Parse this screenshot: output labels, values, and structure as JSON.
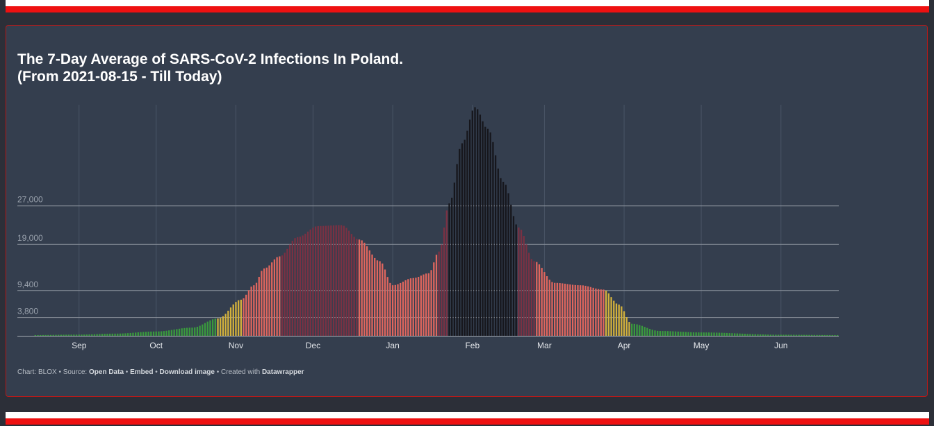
{
  "title": {
    "line1": "The 7-Day Average of SARS-CoV-2 Infections In Poland.",
    "line2": "(From 2021-08-15 - Till Today)"
  },
  "colors": {
    "background": "#2c2f38",
    "card": "#343e4e",
    "flag_white": "#ffffff",
    "flag_red": "#ee1111",
    "green": "#3a9a3e",
    "yellow": "#d4b23c",
    "salmon": "#e0665e",
    "maroon": "#7a3143",
    "black": "#16161c"
  },
  "footer": {
    "prefix": "Chart: BLOX • Source:",
    "open_data": "Open Data",
    "sep1": "•",
    "embed": "Embed",
    "sep2": "•",
    "download": "Download image",
    "sep3": "• Created with",
    "datawrapper": "Datawrapper"
  },
  "chart_data": {
    "type": "bar",
    "title": "The 7-Day Average of SARS-CoV-2 Infections In Poland. (From 2021-08-15 - Till Today)",
    "xlabel": "",
    "ylabel": "",
    "x_start": "2021-08-15",
    "x_end": "2022-06-23",
    "x_ticks": [
      {
        "label": "Sep",
        "date": "2021-09-01"
      },
      {
        "label": "Oct",
        "date": "2021-10-01"
      },
      {
        "label": "Nov",
        "date": "2021-11-01"
      },
      {
        "label": "Dec",
        "date": "2021-12-01"
      },
      {
        "label": "Jan",
        "date": "2022-01-01"
      },
      {
        "label": "Feb",
        "date": "2022-02-01"
      },
      {
        "label": "Mar",
        "date": "2022-03-01"
      },
      {
        "label": "Apr",
        "date": "2022-04-01"
      },
      {
        "label": "May",
        "date": "2022-05-01"
      },
      {
        "label": "Jun",
        "date": "2022-06-01"
      }
    ],
    "y_ticks": [
      {
        "label": "3,800",
        "value": 3800
      },
      {
        "label": "9,400",
        "value": 9400
      },
      {
        "label": "19,000",
        "value": 19000
      },
      {
        "label": "27,000",
        "value": 27000
      }
    ],
    "ylim": [
      0,
      48000
    ],
    "grid": true,
    "color_bands": [
      {
        "from": "2021-08-15",
        "to": "2021-10-24",
        "color": "green"
      },
      {
        "from": "2021-10-25",
        "to": "2021-11-03",
        "color": "yellow"
      },
      {
        "from": "2021-11-04",
        "to": "2021-11-18",
        "color": "salmon"
      },
      {
        "from": "2021-11-19",
        "to": "2021-12-18",
        "color": "maroon"
      },
      {
        "from": "2021-12-19",
        "to": "2022-01-18",
        "color": "salmon"
      },
      {
        "from": "2022-01-19",
        "to": "2022-01-22",
        "color": "maroon"
      },
      {
        "from": "2022-01-23",
        "to": "2022-02-18",
        "color": "black"
      },
      {
        "from": "2022-02-19",
        "to": "2022-02-25",
        "color": "maroon"
      },
      {
        "from": "2022-02-26",
        "to": "2022-03-24",
        "color": "salmon"
      },
      {
        "from": "2022-03-25",
        "to": "2022-04-03",
        "color": "yellow"
      },
      {
        "from": "2022-04-04",
        "to": "2022-06-23",
        "color": "green"
      }
    ],
    "keypoints": [
      {
        "date": "2021-08-15",
        "value": 150
      },
      {
        "date": "2021-09-01",
        "value": 250
      },
      {
        "date": "2021-09-15",
        "value": 450
      },
      {
        "date": "2021-10-01",
        "value": 900
      },
      {
        "date": "2021-10-15",
        "value": 1700
      },
      {
        "date": "2021-10-25",
        "value": 3600
      },
      {
        "date": "2021-11-03",
        "value": 7500
      },
      {
        "date": "2021-11-08",
        "value": 10500
      },
      {
        "date": "2021-11-12",
        "value": 14000
      },
      {
        "date": "2021-11-18",
        "value": 16500
      },
      {
        "date": "2021-11-25",
        "value": 20500
      },
      {
        "date": "2021-12-03",
        "value": 22800
      },
      {
        "date": "2021-12-12",
        "value": 23000
      },
      {
        "date": "2021-12-19",
        "value": 20000
      },
      {
        "date": "2021-12-27",
        "value": 15500
      },
      {
        "date": "2022-01-01",
        "value": 10500
      },
      {
        "date": "2022-01-09",
        "value": 12000
      },
      {
        "date": "2022-01-15",
        "value": 13000
      },
      {
        "date": "2022-01-19",
        "value": 17500
      },
      {
        "date": "2022-01-23",
        "value": 27500
      },
      {
        "date": "2022-01-28",
        "value": 40000
      },
      {
        "date": "2022-02-02",
        "value": 47500
      },
      {
        "date": "2022-02-07",
        "value": 43000
      },
      {
        "date": "2022-02-13",
        "value": 32000
      },
      {
        "date": "2022-02-19",
        "value": 22500
      },
      {
        "date": "2022-02-25",
        "value": 15500
      },
      {
        "date": "2022-03-05",
        "value": 11000
      },
      {
        "date": "2022-03-15",
        "value": 10500
      },
      {
        "date": "2022-03-24",
        "value": 9600
      },
      {
        "date": "2022-03-30",
        "value": 6500
      },
      {
        "date": "2022-04-04",
        "value": 2500
      },
      {
        "date": "2022-04-15",
        "value": 1000
      },
      {
        "date": "2022-05-01",
        "value": 700
      },
      {
        "date": "2022-06-01",
        "value": 220
      },
      {
        "date": "2022-06-23",
        "value": 150
      }
    ]
  }
}
